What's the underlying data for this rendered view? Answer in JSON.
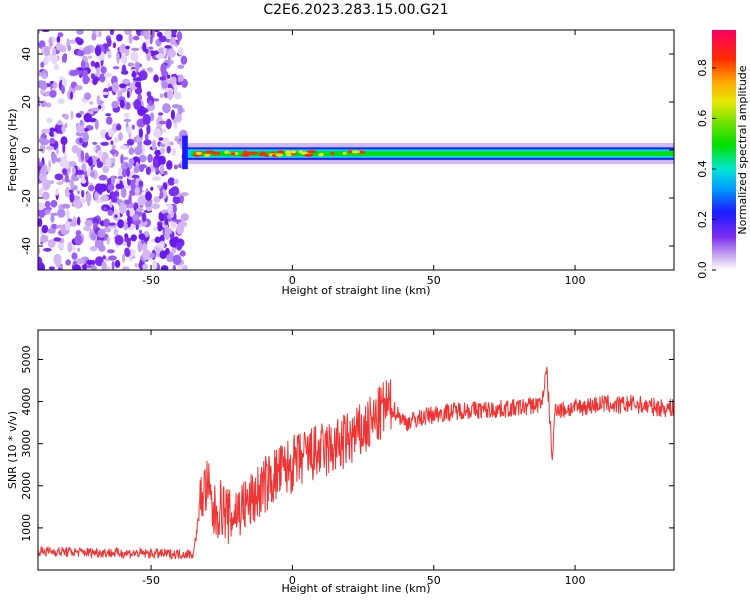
{
  "title": "C2E6.2023.283.15.00.G21",
  "chart_data": [
    {
      "type": "heatmap",
      "xlabel": "Height of straight line (km)",
      "ylabel": "Frequency (Hz)",
      "xlim": [
        -90,
        135
      ],
      "ylim": [
        -50,
        50
      ],
      "xticks": [
        -50,
        0,
        50,
        100
      ],
      "yticks": [
        -40,
        -20,
        0,
        20,
        40
      ],
      "colorbar": {
        "label": "Normalized spectral amplitude",
        "range": [
          0,
          0.95
        ],
        "ticks": [
          0.0,
          0.2,
          0.4,
          0.6,
          0.8
        ],
        "colormap": "rainbow (violet-blue-cyan-green-yellow-orange-red-magenta)"
      },
      "features": [
        {
          "region": "noise",
          "x_range": [
            -90,
            -38
          ],
          "freq_range": [
            -50,
            50
          ],
          "amplitude": 0.05
        },
        {
          "region": "signal_track",
          "x_range": [
            -38,
            135
          ],
          "center_freq_hz": -1.5,
          "width_hz": 4,
          "peak_amplitude": 0.9
        }
      ]
    },
    {
      "type": "line",
      "xlabel": "Height of straight line (km)",
      "ylabel": "SNR (10 * v/v)",
      "xlim": [
        -90,
        135
      ],
      "ylim": [
        0,
        5700
      ],
      "xticks": [
        -50,
        0,
        50,
        100
      ],
      "yticks": [
        1000,
        2000,
        3000,
        4000,
        5000
      ],
      "color": "#ee3333",
      "series": [
        {
          "x": [
            -90,
            -80,
            -70,
            -60,
            -50,
            -40,
            -35,
            -32,
            -30,
            -28,
            -25,
            -22,
            -20,
            -15,
            -10,
            -5,
            0,
            5,
            10,
            15,
            20,
            25,
            30,
            33,
            36,
            40,
            45,
            50,
            55,
            60,
            70,
            80,
            88,
            90,
            92,
            93,
            95,
            100,
            105,
            110,
            115,
            120,
            125,
            130,
            135
          ],
          "y": [
            450,
            430,
            420,
            400,
            390,
            380,
            380,
            1800,
            2000,
            1300,
            1500,
            1200,
            1400,
            1600,
            2000,
            2300,
            2500,
            2700,
            2800,
            2900,
            3100,
            3300,
            3600,
            3900,
            3800,
            3500,
            3600,
            3700,
            3750,
            3800,
            3800,
            3850,
            3950,
            4700,
            2600,
            3900,
            3800,
            3850,
            3900,
            3950,
            3900,
            3950,
            3900,
            3850,
            3850
          ]
        }
      ]
    }
  ]
}
